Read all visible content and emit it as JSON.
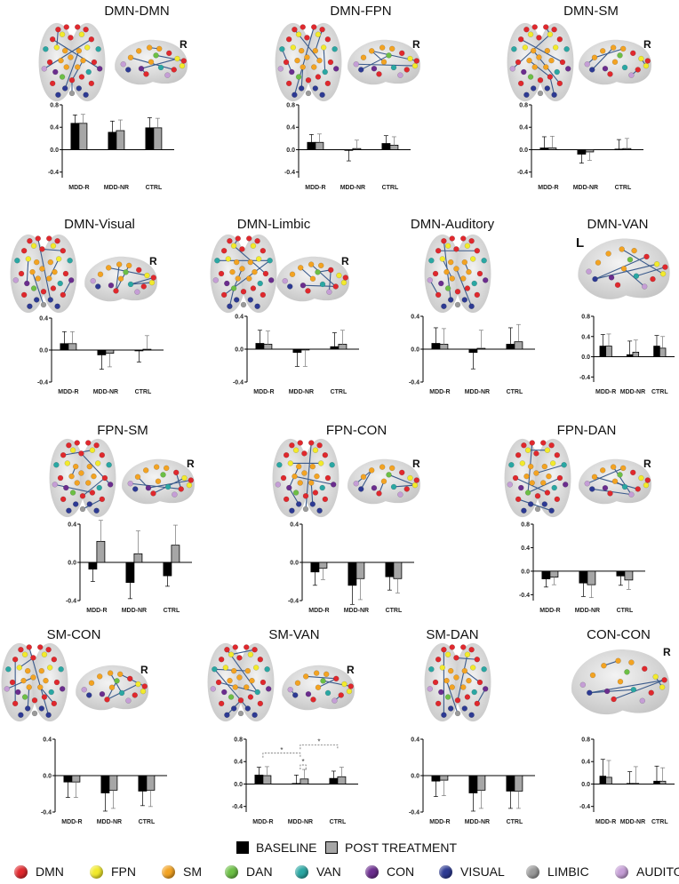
{
  "colors": {
    "baseline": "#000000",
    "post": "#a6a6a6",
    "brain": "#dcdcdc",
    "connection": "#3b5b8c"
  },
  "legend": {
    "conditions": [
      {
        "label": "BASELINE",
        "color": "#000000"
      },
      {
        "label": "POST TREATMENT",
        "color": "#a6a6a6"
      }
    ],
    "networks": [
      {
        "label": "DMN",
        "color": "#e0282d"
      },
      {
        "label": "FPN",
        "color": "#f2ea2c"
      },
      {
        "label": "SM",
        "color": "#f3a322"
      },
      {
        "label": "DAN",
        "color": "#6cbf45"
      },
      {
        "label": "VAN",
        "color": "#2aa7a3"
      },
      {
        "label": "CON",
        "color": "#6b2d8e"
      },
      {
        "label": "VISUAL",
        "color": "#2d3a93"
      },
      {
        "label": "LIMBIC",
        "color": "#9a9a9a"
      },
      {
        "label": "AUDITORY",
        "color": "#c59ed6"
      }
    ]
  },
  "chart_data": [
    {
      "type": "bar",
      "title": "DMN-DMN",
      "brain_side": "R",
      "categories": [
        "MDD-R",
        "MDD-NR",
        "CTRL"
      ],
      "series": [
        {
          "name": "BASELINE",
          "values": [
            0.47,
            0.31,
            0.39
          ],
          "errors": [
            0.15,
            0.2,
            0.18
          ]
        },
        {
          "name": "POST TREATMENT",
          "values": [
            0.47,
            0.34,
            0.39
          ],
          "errors": [
            0.16,
            0.19,
            0.17
          ]
        }
      ],
      "yticks": [
        "0.8",
        "0.4",
        "0.0",
        "-0.4"
      ],
      "ylim": [
        -0.5,
        0.8
      ]
    },
    {
      "type": "bar",
      "title": "DMN-FPN",
      "brain_side": "R",
      "categories": [
        "MDD-R",
        "MDD-NR",
        "CTRL"
      ],
      "series": [
        {
          "name": "BASELINE",
          "values": [
            0.13,
            -0.01,
            0.11
          ],
          "errors": [
            0.14,
            0.19,
            0.14
          ]
        },
        {
          "name": "POST TREATMENT",
          "values": [
            0.13,
            0.02,
            0.08
          ],
          "errors": [
            0.15,
            0.15,
            0.15
          ]
        }
      ],
      "yticks": [
        "0.8",
        "0.4",
        "0.0",
        "-0.4"
      ],
      "ylim": [
        -0.5,
        0.8
      ]
    },
    {
      "type": "bar",
      "title": "DMN-SM",
      "brain_side": "R",
      "categories": [
        "MDD-R",
        "MDD-NR",
        "CTRL"
      ],
      "series": [
        {
          "name": "BASELINE",
          "values": [
            0.03,
            -0.08,
            0.01
          ],
          "errors": [
            0.2,
            0.16,
            0.17
          ]
        },
        {
          "name": "POST TREATMENT",
          "values": [
            0.03,
            -0.04,
            0.02
          ],
          "errors": [
            0.21,
            0.15,
            0.18
          ]
        }
      ],
      "yticks": [
        "0.8",
        "0.4",
        "0.0",
        "-0.4"
      ],
      "ylim": [
        -0.5,
        0.8
      ]
    },
    {
      "type": "bar",
      "title": "DMN-Visual",
      "brain_side": "R",
      "categories": [
        "MDD-R",
        "MDD-NR",
        "CTRL"
      ],
      "series": [
        {
          "name": "BASELINE",
          "values": [
            0.08,
            -0.06,
            -0.01
          ],
          "errors": [
            0.15,
            0.18,
            0.14
          ]
        },
        {
          "name": "POST TREATMENT",
          "values": [
            0.08,
            -0.04,
            0.01
          ],
          "errors": [
            0.15,
            0.17,
            0.17
          ]
        }
      ],
      "yticks": [
        "0.4",
        "0.0",
        "-0.4"
      ],
      "ylim": [
        -0.4,
        0.4
      ]
    },
    {
      "type": "bar",
      "title": "DMN-Limbic",
      "brain_side": "R",
      "categories": [
        "MDD-R",
        "MDD-NR",
        "CTRL"
      ],
      "series": [
        {
          "name": "BASELINE",
          "values": [
            0.07,
            -0.04,
            0.03
          ],
          "errors": [
            0.16,
            0.17,
            0.17
          ]
        },
        {
          "name": "POST TREATMENT",
          "values": [
            0.06,
            -0.01,
            0.06
          ],
          "errors": [
            0.16,
            0.2,
            0.17
          ]
        }
      ],
      "yticks": [
        "0.4",
        "0.0",
        "-0.4"
      ],
      "ylim": [
        -0.4,
        0.4
      ]
    },
    {
      "type": "bar",
      "title": "DMN-Auditory",
      "brain_side": "",
      "categories": [
        "MDD-R",
        "MDD-NR",
        "CTRL"
      ],
      "series": [
        {
          "name": "BASELINE",
          "values": [
            0.07,
            -0.04,
            0.06
          ],
          "errors": [
            0.19,
            0.2,
            0.2
          ]
        },
        {
          "name": "POST TREATMENT",
          "values": [
            0.06,
            0.01,
            0.09
          ],
          "errors": [
            0.19,
            0.22,
            0.21
          ]
        }
      ],
      "yticks": [
        "0.4",
        "0.0",
        "-0.4"
      ],
      "ylim": [
        -0.4,
        0.4
      ]
    },
    {
      "type": "bar",
      "title": "DMN-VAN",
      "brain_side": "L",
      "categories": [
        "MDD-R",
        "MDD-NR",
        "CTRL"
      ],
      "series": [
        {
          "name": "BASELINE",
          "values": [
            0.21,
            0.04,
            0.21
          ],
          "errors": [
            0.23,
            0.27,
            0.21
          ]
        },
        {
          "name": "POST TREATMENT",
          "values": [
            0.21,
            0.09,
            0.17
          ],
          "errors": [
            0.24,
            0.24,
            0.23
          ]
        }
      ],
      "yticks": [
        "0.8",
        "0.4",
        "0.0",
        "-0.4"
      ],
      "ylim": [
        -0.5,
        0.8
      ]
    },
    {
      "type": "bar",
      "title": "FPN-SM",
      "brain_side": "R",
      "categories": [
        "MDD-R",
        "MDD-NR",
        "CTRL"
      ],
      "series": [
        {
          "name": "BASELINE",
          "values": [
            -0.07,
            -0.21,
            -0.14
          ],
          "errors": [
            0.13,
            0.17,
            0.11
          ]
        },
        {
          "name": "POST TREATMENT",
          "values": [
            0.22,
            0.09,
            0.18
          ],
          "errors": [
            0.22,
            0.24,
            0.21
          ]
        }
      ],
      "yticks": [
        "0.4",
        "0.0",
        "-0.4"
      ],
      "ylim": [
        -0.4,
        0.4
      ]
    },
    {
      "type": "bar",
      "title": "FPN-CON",
      "brain_side": "R",
      "categories": [
        "MDD-R",
        "MDD-NR",
        "CTRL"
      ],
      "series": [
        {
          "name": "BASELINE",
          "values": [
            -0.1,
            -0.24,
            -0.15
          ],
          "errors": [
            0.14,
            0.2,
            0.14
          ]
        },
        {
          "name": "POST TREATMENT",
          "values": [
            -0.06,
            -0.17,
            -0.17
          ],
          "errors": [
            0.12,
            0.22,
            0.15
          ]
        }
      ],
      "yticks": [
        "0.4",
        "0.0",
        "-0.4"
      ],
      "ylim": [
        -0.4,
        0.4
      ]
    },
    {
      "type": "bar",
      "title": "FPN-DAN",
      "brain_side": "R",
      "categories": [
        "MDD-R",
        "MDD-NR",
        "CTRL"
      ],
      "series": [
        {
          "name": "BASELINE",
          "values": [
            -0.13,
            -0.2,
            -0.08
          ],
          "errors": [
            0.14,
            0.23,
            0.16
          ]
        },
        {
          "name": "POST TREATMENT",
          "values": [
            -0.1,
            -0.23,
            -0.15
          ],
          "errors": [
            0.13,
            0.22,
            0.16
          ]
        }
      ],
      "yticks": [
        "0.8",
        "0.4",
        "0.0",
        "-0.4"
      ],
      "ylim": [
        -0.5,
        0.8
      ]
    },
    {
      "type": "bar",
      "title": "SM-CON",
      "brain_side": "R",
      "categories": [
        "MDD-R",
        "MDD-NR",
        "CTRL"
      ],
      "series": [
        {
          "name": "BASELINE",
          "values": [
            -0.07,
            -0.19,
            -0.17
          ],
          "errors": [
            0.17,
            0.2,
            0.16
          ]
        },
        {
          "name": "POST TREATMENT",
          "values": [
            -0.07,
            -0.16,
            -0.16
          ],
          "errors": [
            0.17,
            0.2,
            0.18
          ]
        }
      ],
      "yticks": [
        "0.4",
        "0.0",
        "-0.4"
      ],
      "ylim": [
        -0.4,
        0.4
      ]
    },
    {
      "type": "bar",
      "title": "SM-VAN",
      "brain_side": "R",
      "categories": [
        "MDD-R",
        "MDD-NR",
        "CTRL"
      ],
      "series": [
        {
          "name": "BASELINE",
          "values": [
            0.16,
            0.01,
            0.1
          ],
          "errors": [
            0.14,
            0.15,
            0.13
          ]
        },
        {
          "name": "POST TREATMENT",
          "values": [
            0.15,
            0.09,
            0.13
          ],
          "errors": [
            0.16,
            0.17,
            0.17
          ]
        }
      ],
      "annotations": [
        "*",
        "*",
        "*"
      ],
      "yticks": [
        "0.8",
        "0.4",
        "0.0",
        "-0.4"
      ],
      "ylim": [
        -0.5,
        0.8
      ]
    },
    {
      "type": "bar",
      "title": "SM-DAN",
      "brain_side": "",
      "categories": [
        "MDD-R",
        "MDD-NR",
        "CTRL"
      ],
      "series": [
        {
          "name": "BASELINE",
          "values": [
            -0.06,
            -0.19,
            -0.17
          ],
          "errors": [
            0.17,
            0.2,
            0.19
          ]
        },
        {
          "name": "POST TREATMENT",
          "values": [
            -0.05,
            -0.16,
            -0.17
          ],
          "errors": [
            0.17,
            0.2,
            0.19
          ]
        }
      ],
      "yticks": [
        "0.4",
        "0.0",
        "-0.4"
      ],
      "ylim": [
        -0.4,
        0.4
      ]
    },
    {
      "type": "bar",
      "title": "CON-CON",
      "brain_side": "R",
      "categories": [
        "MDD-R",
        "MDD-NR",
        "CTRL"
      ],
      "series": [
        {
          "name": "BASELINE",
          "values": [
            0.14,
            0.01,
            0.05
          ],
          "errors": [
            0.3,
            0.21,
            0.27
          ]
        },
        {
          "name": "POST TREATMENT",
          "values": [
            0.12,
            0.01,
            0.05
          ],
          "errors": [
            0.3,
            0.3,
            0.24
          ]
        }
      ],
      "yticks": [
        "0.8",
        "0.4",
        "0.0",
        "-0.4"
      ],
      "ylim": [
        -0.5,
        0.8
      ]
    }
  ]
}
